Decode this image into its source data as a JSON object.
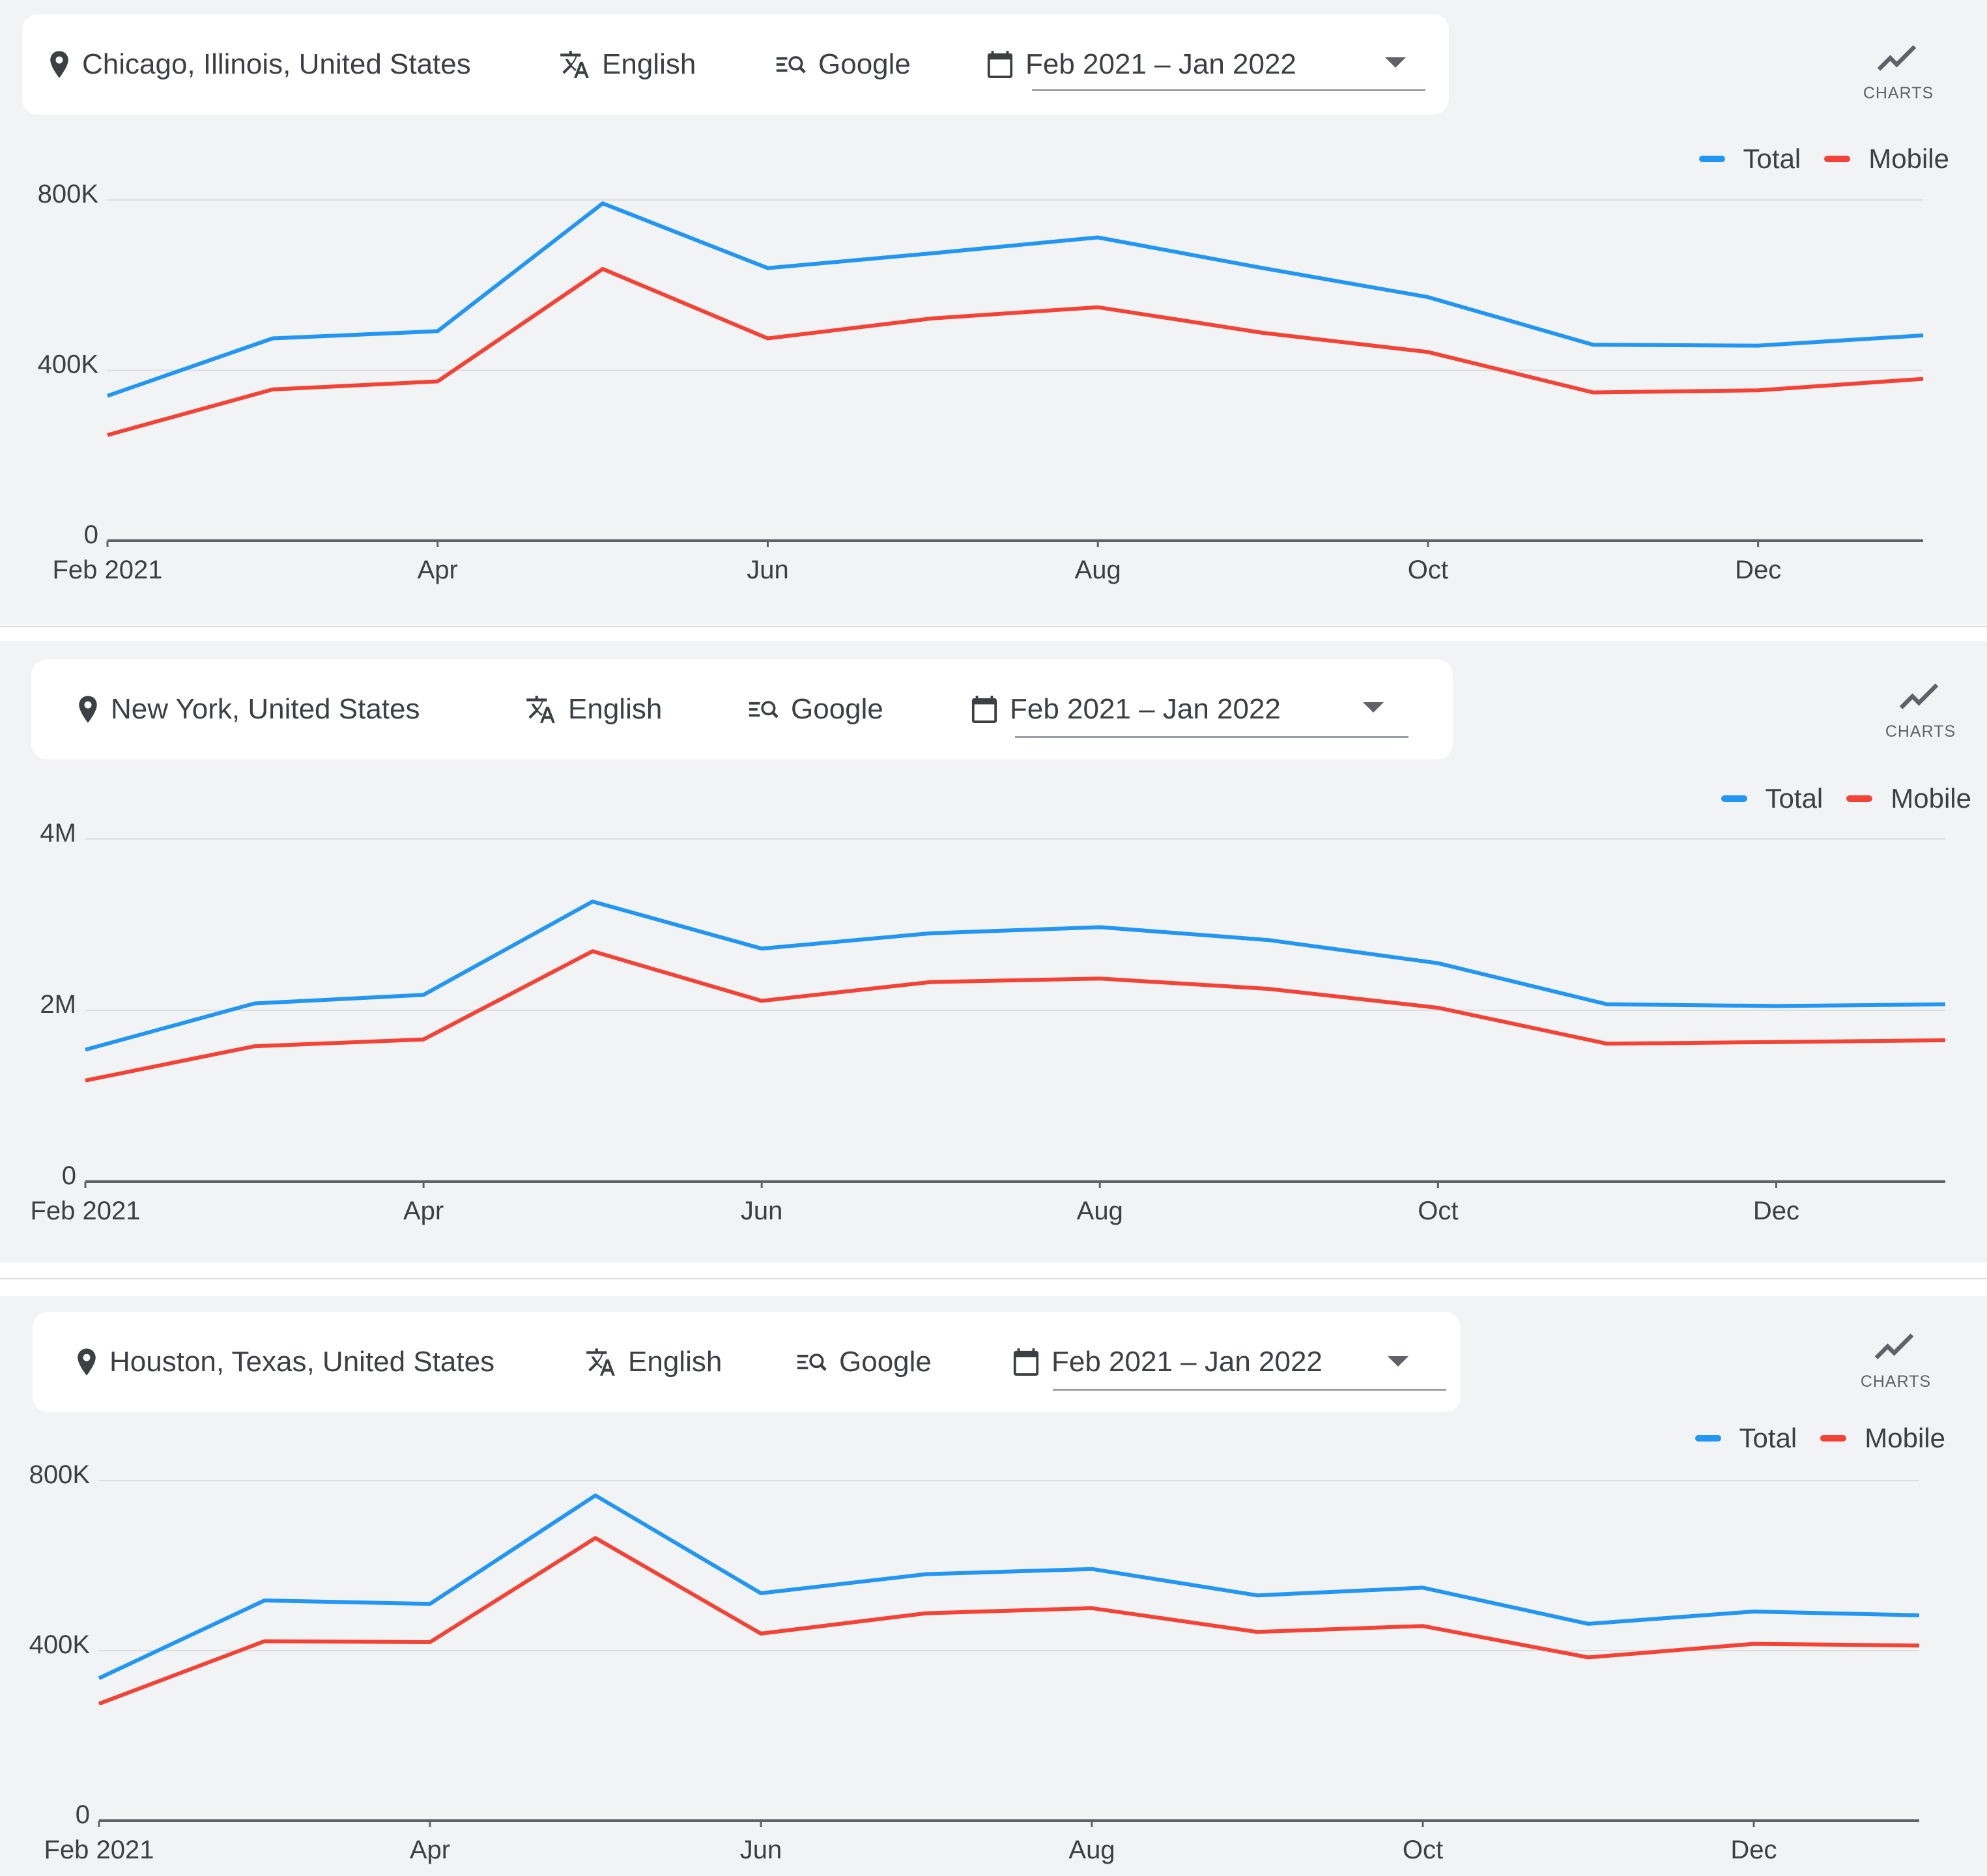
{
  "colors": {
    "total": "#2196f3",
    "mobile": "#f44336",
    "grid": "#dadce0",
    "axis": "#5f6368",
    "panel": "#f1f3f4"
  },
  "charts_label": "CHARTS",
  "charts_icon": "trend-line-icon",
  "panels": [
    {
      "filters": {
        "location": "Chicago, Illinois, United States",
        "language": "English",
        "engine": "Google",
        "date_range": "Feb 2021 – Jan 2022"
      },
      "legend": [
        "Total",
        "Mobile"
      ],
      "chart_data": {
        "type": "line",
        "x": [
          "Feb 2021",
          "Mar 2021",
          "Apr 2021",
          "May 2021",
          "Jun 2021",
          "Jul 2021",
          "Aug 2021",
          "Sep 2021",
          "Oct 2021",
          "Nov 2021",
          "Dec 2021",
          "Jan 2022"
        ],
        "x_tick_labels": [
          "Feb 2021",
          "Apr",
          "Jun",
          "Aug",
          "Oct",
          "Dec"
        ],
        "x_tick_indices": [
          0,
          2,
          4,
          6,
          8,
          10
        ],
        "y_ticks": [
          0,
          400000,
          800000
        ],
        "y_tick_labels": [
          "0",
          "400K",
          "800K"
        ],
        "ylim": [
          0,
          800000
        ],
        "grid": true,
        "legend_position": "top-right",
        "series": [
          {
            "name": "Total",
            "values": [
              340000,
              475000,
              492000,
              792000,
              640000,
              675000,
              712000,
              640000,
              572000,
              460000,
              458000,
              482000
            ]
          },
          {
            "name": "Mobile",
            "values": [
              248000,
              355000,
              374000,
              638000,
              475000,
              522000,
              548000,
              488000,
              443000,
              348000,
              353000,
              380000
            ]
          }
        ]
      }
    },
    {
      "filters": {
        "location": "New York, United States",
        "language": "English",
        "engine": "Google",
        "date_range": "Feb 2021 – Jan 2022"
      },
      "legend": [
        "Total",
        "Mobile"
      ],
      "chart_data": {
        "type": "line",
        "x": [
          "Feb 2021",
          "Mar 2021",
          "Apr 2021",
          "May 2021",
          "Jun 2021",
          "Jul 2021",
          "Aug 2021",
          "Sep 2021",
          "Oct 2021",
          "Nov 2021",
          "Dec 2021",
          "Jan 2022"
        ],
        "x_tick_labels": [
          "Feb 2021",
          "Apr",
          "Jun",
          "Aug",
          "Oct",
          "Dec"
        ],
        "x_tick_indices": [
          0,
          2,
          4,
          6,
          8,
          10
        ],
        "y_ticks": [
          0,
          2000000,
          4000000
        ],
        "y_tick_labels": [
          "0",
          "2M",
          "4M"
        ],
        "ylim": [
          0,
          4000000
        ],
        "grid": true,
        "legend_position": "top-right",
        "series": [
          {
            "name": "Total",
            "values": [
              1540000,
              2080000,
              2180000,
              3270000,
              2720000,
              2900000,
              2970000,
              2820000,
              2550000,
              2070000,
              2050000,
              2070000
            ]
          },
          {
            "name": "Mobile",
            "values": [
              1180000,
              1580000,
              1660000,
              2690000,
              2110000,
              2330000,
              2370000,
              2250000,
              2030000,
              1610000,
              1630000,
              1650000
            ]
          }
        ]
      }
    },
    {
      "filters": {
        "location": "Houston, Texas, United States",
        "language": "English",
        "engine": "Google",
        "date_range": "Feb 2021 – Jan 2022"
      },
      "legend": [
        "Total",
        "Mobile"
      ],
      "chart_data": {
        "type": "line",
        "x": [
          "Feb 2021",
          "Mar 2021",
          "Apr 2021",
          "May 2021",
          "Jun 2021",
          "Jul 2021",
          "Aug 2021",
          "Sep 2021",
          "Oct 2021",
          "Nov 2021",
          "Dec 2021",
          "Jan 2022"
        ],
        "x_tick_labels": [
          "Feb 2021",
          "Apr",
          "Jun",
          "Aug",
          "Oct",
          "Dec"
        ],
        "x_tick_indices": [
          0,
          2,
          4,
          6,
          8,
          10
        ],
        "y_ticks": [
          0,
          400000,
          800000
        ],
        "y_tick_labels": [
          "0",
          "400K",
          "800K"
        ],
        "ylim": [
          0,
          800000
        ],
        "grid": true,
        "legend_position": "top-right",
        "series": [
          {
            "name": "Total",
            "values": [
              335000,
              518000,
              510000,
              765000,
              535000,
              580000,
              592000,
              530000,
              548000,
              463000,
              492000,
              483000
            ]
          },
          {
            "name": "Mobile",
            "values": [
              275000,
              422000,
              420000,
              665000,
              440000,
              488000,
              500000,
              444000,
              458000,
              384000,
              416000,
              412000
            ]
          }
        ]
      }
    }
  ]
}
